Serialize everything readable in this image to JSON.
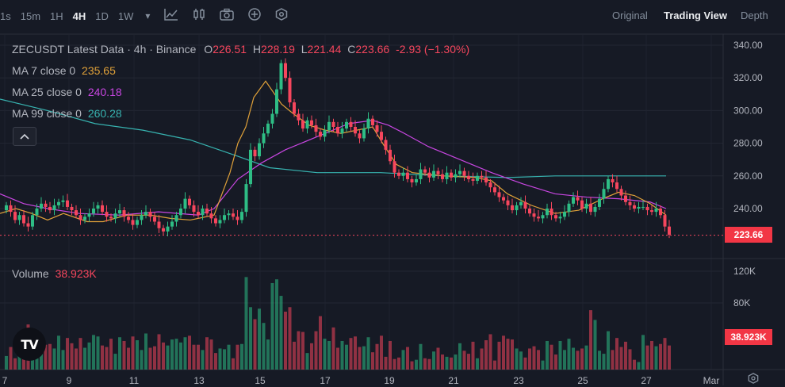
{
  "toolbar": {
    "timeframes": [
      {
        "label": "1s",
        "active": false
      },
      {
        "label": "15m",
        "active": false
      },
      {
        "label": "1H",
        "active": false
      },
      {
        "label": "4H",
        "active": true
      },
      {
        "label": "1D",
        "active": false
      },
      {
        "label": "1W",
        "active": false
      }
    ],
    "dropdown_glyph": "▾",
    "views": {
      "original": "Original",
      "trading_view": "Trading View",
      "depth": "Depth"
    }
  },
  "legend": {
    "title": "ZECUSDT Latest Data · 4h · Binance",
    "o_label": "O",
    "o_value": "226.51",
    "h_label": "H",
    "h_value": "228.19",
    "l_label": "L",
    "l_value": "221.44",
    "c_label": "C",
    "c_value": "223.66",
    "change": "-2.93 (−1.30%)",
    "ma7_label": "MA 7 close 0",
    "ma7_value": "235.65",
    "ma25_label": "MA 25 close 0",
    "ma25_value": "240.18",
    "ma99_label": "MA 99 close 0",
    "ma99_value": "260.28"
  },
  "volume_legend": {
    "label": "Volume",
    "value": "38.923K"
  },
  "last_price_tag": "223.66",
  "volume_tag": "38.923K",
  "logo_text": "TV",
  "colors": {
    "up": "#2ebd85",
    "down": "#f6465d",
    "ma7": "#e0a139",
    "ma25": "#c846e1",
    "ma99": "#37b3b0"
  },
  "chart_data": {
    "type": "candlestick",
    "symbol": "ZECUSDT",
    "interval": "4h",
    "exchange": "Binance",
    "price_axis_ticks": [
      "340.00",
      "320.00",
      "300.00",
      "280.00",
      "260.00",
      "240.00"
    ],
    "volume_axis_ticks": [
      "120K",
      "80K"
    ],
    "x_ticks": [
      "7",
      "9",
      "11",
      "13",
      "15",
      "17",
      "19",
      "21",
      "23",
      "25",
      "27",
      "Mar"
    ],
    "price_range": [
      215,
      345
    ],
    "volume_range": [
      0,
      135
    ],
    "closes": [
      242,
      238,
      233,
      236,
      231,
      229,
      236,
      240,
      243,
      241,
      239,
      242,
      244,
      245,
      241,
      239,
      236,
      233,
      235,
      237,
      240,
      242,
      238,
      235,
      234,
      237,
      239,
      235,
      233,
      230,
      233,
      236,
      238,
      235,
      232,
      228,
      226,
      229,
      232,
      236,
      240,
      246,
      242,
      238,
      236,
      240,
      237,
      234,
      231,
      233,
      236,
      237,
      235,
      233,
      238,
      255,
      276,
      272,
      280,
      286,
      292,
      298,
      313,
      329,
      320,
      305,
      298,
      294,
      289,
      294,
      291,
      287,
      284,
      288,
      293,
      290,
      286,
      289,
      293,
      290,
      286,
      283,
      289,
      295,
      291,
      287,
      282,
      276,
      269,
      262,
      260,
      262,
      258,
      256,
      258,
      264,
      262,
      259,
      263,
      261,
      258,
      262,
      259,
      261,
      263,
      260,
      258,
      257,
      260,
      259,
      256,
      253,
      250,
      247,
      245,
      242,
      239,
      242,
      244,
      240,
      237,
      235,
      234,
      236,
      240,
      236,
      234,
      235,
      238,
      243,
      247,
      245,
      240,
      243,
      238,
      241,
      246,
      252,
      258,
      256,
      252,
      248,
      244,
      242,
      240,
      241,
      241,
      239,
      238,
      240,
      236,
      229,
      224
    ],
    "volumes": [
      18,
      30,
      15,
      22,
      32,
      60,
      42,
      23,
      46,
      33,
      34,
      28,
      45,
      26,
      42,
      35,
      28,
      42,
      29,
      36,
      46,
      44,
      32,
      30,
      41,
      21,
      43,
      38,
      29,
      44,
      39,
      26,
      48,
      29,
      31,
      47,
      36,
      32,
      40,
      41,
      36,
      43,
      45,
      33,
      33,
      26,
      43,
      40,
      22,
      28,
      27,
      33,
      15,
      33,
      34,
      123,
      83,
      67,
      81,
      62,
      40,
      115,
      120,
      98,
      77,
      83,
      37,
      51,
      50,
      22,
      35,
      51,
      71,
      41,
      38,
      56,
      29,
      38,
      33,
      42,
      44,
      30,
      31,
      43,
      23,
      34,
      45,
      17,
      38,
      14,
      16,
      26,
      30,
      11,
      13,
      34,
      15,
      14,
      24,
      29,
      20,
      17,
      16,
      20,
      35,
      25,
      21,
      37,
      15,
      28,
      39,
      47,
      12,
      37,
      45,
      41,
      40,
      28,
      24,
      16,
      28,
      31,
      26,
      12,
      38,
      33,
      20,
      38,
      26,
      41,
      29,
      25,
      28,
      32,
      79,
      66,
      25,
      21,
      51,
      26,
      42,
      30,
      37,
      27,
      13,
      10,
      46,
      32,
      38,
      31,
      34,
      42,
      32
    ],
    "ma7": [
      [
        0,
        237
      ],
      [
        20,
        240
      ],
      [
        40,
        237
      ],
      [
        60,
        233
      ],
      [
        80,
        237
      ],
      [
        110,
        232
      ],
      [
        130,
        232
      ],
      [
        160,
        236
      ],
      [
        190,
        236
      ],
      [
        215,
        234
      ],
      [
        240,
        233
      ],
      [
        270,
        236
      ],
      [
        290,
        262
      ],
      [
        300,
        280
      ],
      [
        310,
        290
      ],
      [
        320,
        308
      ],
      [
        335,
        318
      ],
      [
        355,
        304
      ],
      [
        370,
        298
      ],
      [
        390,
        291
      ],
      [
        410,
        288
      ],
      [
        430,
        286
      ],
      [
        450,
        288
      ],
      [
        470,
        290
      ],
      [
        485,
        278
      ],
      [
        500,
        267
      ],
      [
        520,
        262
      ],
      [
        560,
        260
      ],
      [
        600,
        259
      ],
      [
        620,
        257
      ],
      [
        640,
        249
      ],
      [
        670,
        242
      ],
      [
        700,
        237
      ],
      [
        730,
        239
      ],
      [
        760,
        246
      ],
      [
        780,
        250
      ],
      [
        800,
        248
      ],
      [
        820,
        243
      ],
      [
        840,
        236
      ]
    ],
    "ma25": [
      [
        0,
        249
      ],
      [
        30,
        243
      ],
      [
        60,
        240
      ],
      [
        100,
        237
      ],
      [
        150,
        236
      ],
      [
        200,
        238
      ],
      [
        250,
        236
      ],
      [
        270,
        240
      ],
      [
        300,
        258
      ],
      [
        330,
        268
      ],
      [
        360,
        276
      ],
      [
        400,
        284
      ],
      [
        440,
        292
      ],
      [
        470,
        294
      ],
      [
        490,
        291
      ],
      [
        510,
        286
      ],
      [
        540,
        278
      ],
      [
        580,
        270
      ],
      [
        620,
        262
      ],
      [
        660,
        255
      ],
      [
        700,
        249
      ],
      [
        740,
        247
      ],
      [
        780,
        246
      ],
      [
        820,
        244
      ],
      [
        840,
        240
      ]
    ],
    "ma99": [
      [
        0,
        307
      ],
      [
        60,
        300
      ],
      [
        120,
        292
      ],
      [
        180,
        288
      ],
      [
        240,
        282
      ],
      [
        300,
        272
      ],
      [
        340,
        265
      ],
      [
        400,
        262
      ],
      [
        480,
        262
      ],
      [
        560,
        260
      ],
      [
        640,
        259
      ],
      [
        700,
        260
      ],
      [
        780,
        260
      ],
      [
        840,
        260
      ]
    ]
  }
}
